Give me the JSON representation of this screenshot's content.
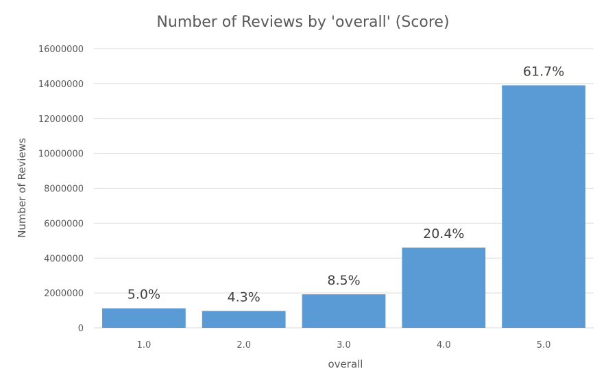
{
  "chart_data": {
    "type": "bar",
    "title": "Number of Reviews by 'overall' (Score)",
    "xlabel": "overall",
    "ylabel": "Number of Reviews",
    "categories": [
      "1.0",
      "2.0",
      "3.0",
      "4.0",
      "5.0"
    ],
    "values": [
      1120000,
      970000,
      1920000,
      4600000,
      13900000
    ],
    "data_labels": [
      "5.0%",
      "4.3%",
      "8.5%",
      "20.4%",
      "61.7%"
    ],
    "ylim": [
      0,
      16000000
    ],
    "yticks": [
      0,
      2000000,
      4000000,
      6000000,
      8000000,
      10000000,
      12000000,
      14000000,
      16000000
    ],
    "ytick_labels": [
      "0",
      "2000000",
      "4000000",
      "6000000",
      "8000000",
      "10000000",
      "12000000",
      "14000000",
      "16000000"
    ],
    "grid": true,
    "legend": "none",
    "bar_color": "#5b9bd5"
  }
}
